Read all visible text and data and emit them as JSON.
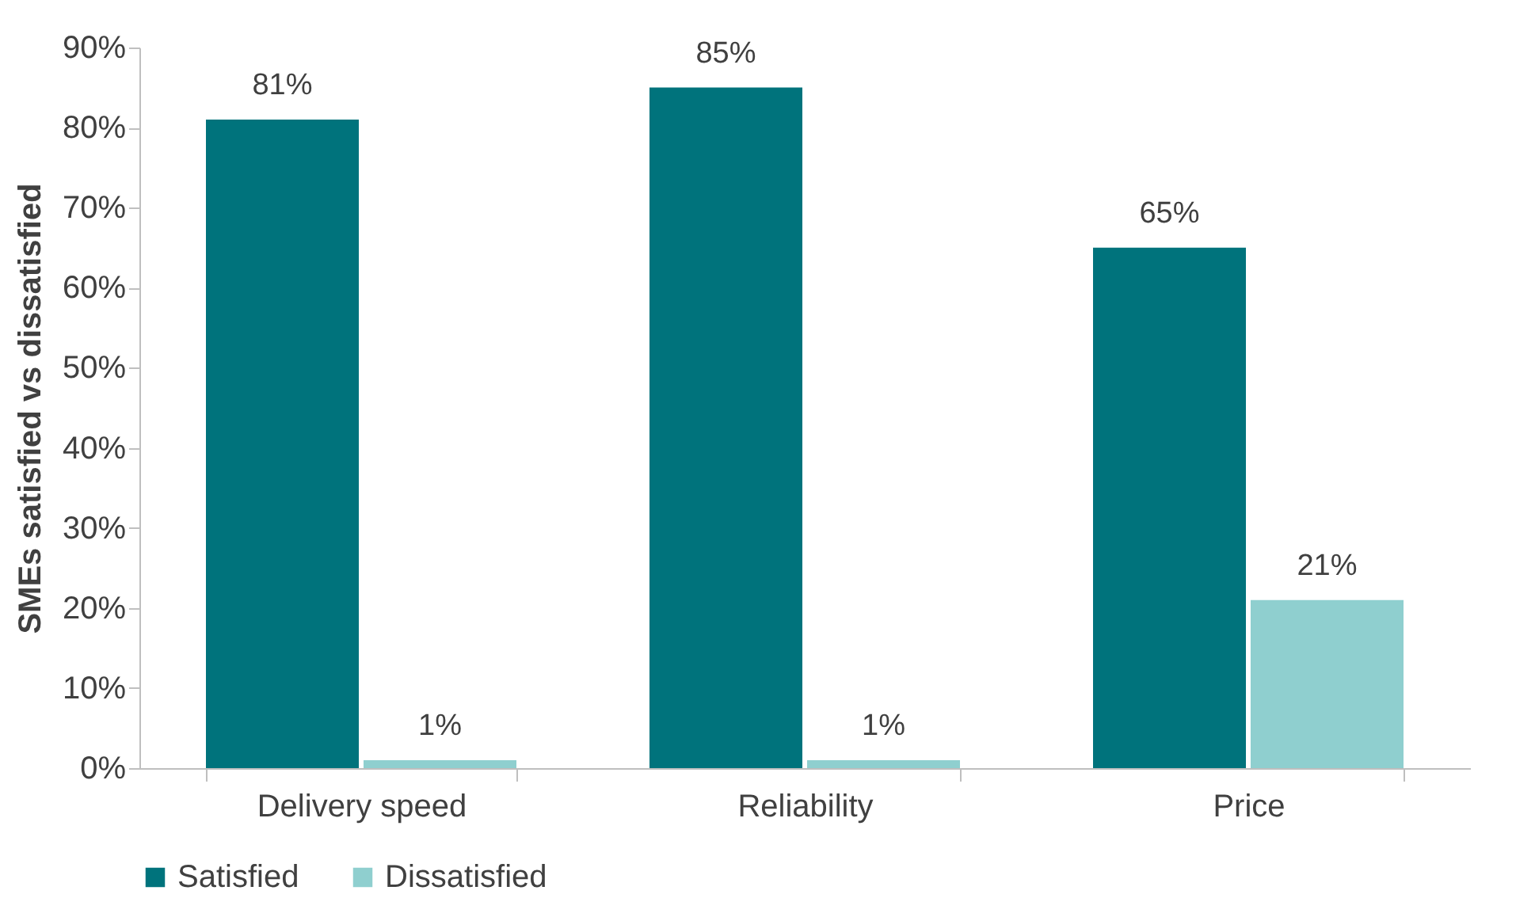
{
  "chart_data": {
    "type": "bar",
    "ylabel": "SMEs satisfied vs dissatisfied",
    "categories": [
      "Delivery speed",
      "Reliability",
      "Price"
    ],
    "series": [
      {
        "name": "Satisfied",
        "color": "#00737c",
        "values": [
          81,
          85,
          65
        ],
        "value_labels": [
          "81%",
          "85%",
          "65%"
        ]
      },
      {
        "name": "Dissatisfied",
        "color": "#8fcfcf",
        "values": [
          1,
          1,
          21
        ],
        "value_labels": [
          "1%",
          "1%",
          "21%"
        ]
      }
    ],
    "ylim": [
      0,
      90
    ],
    "yticks": [
      {
        "value": 0,
        "label": "0%"
      },
      {
        "value": 10,
        "label": "10%"
      },
      {
        "value": 20,
        "label": "20%"
      },
      {
        "value": 30,
        "label": "30%"
      },
      {
        "value": 40,
        "label": "40%"
      },
      {
        "value": 50,
        "label": "50%"
      },
      {
        "value": 60,
        "label": "60%"
      },
      {
        "value": 70,
        "label": "70%"
      },
      {
        "value": 80,
        "label": "80%"
      },
      {
        "value": 90,
        "label": "90%"
      }
    ],
    "grid": false,
    "legend": "bottom"
  }
}
